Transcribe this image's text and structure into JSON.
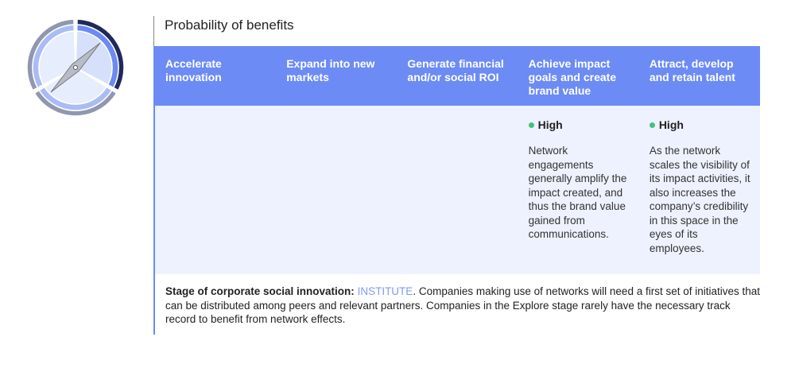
{
  "title": "Probability of benefits",
  "colors": {
    "header": "#6d8bf5",
    "body": "#eef2fe",
    "high_dot": "#3cc57a",
    "stage": "#7e9bf2"
  },
  "icon": "compass-icon",
  "columns": [
    {
      "header": "Accelerate innovation",
      "level": "",
      "desc": ""
    },
    {
      "header": "Expand into new markets",
      "level": "",
      "desc": ""
    },
    {
      "header": "Generate financial and/or social ROI",
      "level": "",
      "desc": ""
    },
    {
      "header": "Achieve impact goals and create brand value",
      "level": "High",
      "desc": "Network engagements generally amplify the impact created, and thus the brand value gained from communications."
    },
    {
      "header": "Attract, develop and retain talent",
      "level": "High",
      "desc": "As the network scales the visibility of its impact activities, it also increases the company’s credibility in this space in the eyes of its employees."
    }
  ],
  "footer": {
    "label": "Stage of corporate social innovation:",
    "stage": "INSTITUTE",
    "text": ". Companies making use of networks will need a first set of initiatives that can be distributed among peers and relevant partners. Companies in the Explore stage rarely have the necessary track record to benefit from network effects."
  }
}
